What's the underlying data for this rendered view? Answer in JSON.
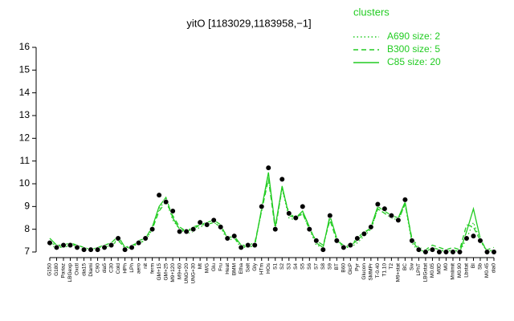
{
  "chart_data": {
    "type": "line",
    "title": "yitO [1183029,1183958,−1]",
    "legend_title": "clusters",
    "legend_position": "top-right",
    "categories": [
      "G150",
      "G180",
      "Pariaz",
      "LBGexp",
      "Oxctl",
      "dia15",
      "Diami",
      "C90",
      "dia5",
      "C30",
      "Cold",
      "HPh",
      "LPh",
      "aero",
      "nit",
      "ferm",
      "GM+15",
      "GM+25",
      "M9+120",
      "M9+60",
      "UNG+20",
      "UNG+30",
      "Mt",
      "M/G",
      "Glu",
      "Fru",
      "Heat",
      "BMM",
      "Etha",
      "Salt",
      "Gly",
      "HTm",
      "HOs",
      "S1",
      "S2",
      "S3",
      "S4",
      "S5",
      "S6",
      "S7",
      "S8",
      "S9",
      "BT",
      "B60",
      "GlcP",
      "Pyr",
      "Glucon",
      "SMMPr",
      "T-0.40",
      "T1.10",
      "T2",
      "M9+stat",
      "BC",
      "Sw",
      "LPhT",
      "LBGstat",
      "M0.05",
      "M0D",
      "M0",
      "Mnlimit",
      "M0.90",
      "Lbstat",
      "BI",
      "Sb",
      "M0.45",
      "dia0"
    ],
    "series": [
      {
        "name": "A690 size: 2",
        "color": "#22cc22",
        "dash": "dotted",
        "values": [
          7.3,
          7.2,
          7.2,
          7.3,
          7.2,
          7.1,
          7.1,
          7.1,
          7.2,
          7.3,
          7.6,
          7.1,
          7.2,
          7.4,
          7.5,
          8.0,
          8.9,
          9.3,
          8.4,
          8.0,
          7.8,
          7.9,
          8.1,
          8.2,
          8.3,
          8.1,
          7.5,
          7.6,
          7.2,
          7.2,
          7.3,
          8.8,
          10.4,
          8.0,
          9.8,
          8.5,
          8.4,
          8.7,
          8.0,
          7.3,
          7.2,
          8.5,
          7.5,
          7.2,
          7.2,
          7.4,
          7.7,
          8.0,
          8.9,
          8.7,
          8.5,
          8.4,
          9.1,
          7.4,
          7.0,
          7.0,
          7.1,
          7.0,
          7.0,
          7.0,
          7.0,
          7.6,
          8.3,
          7.5,
          7.0,
          7.0
        ]
      },
      {
        "name": "B300 size: 5",
        "color": "#22cc22",
        "dash": "dashed",
        "values": [
          7.4,
          7.3,
          7.2,
          7.3,
          7.3,
          7.2,
          7.1,
          7.2,
          7.2,
          7.3,
          7.5,
          7.2,
          7.3,
          7.4,
          7.5,
          8.0,
          8.8,
          9.2,
          8.6,
          8.1,
          7.9,
          8.1,
          8.2,
          8.2,
          8.3,
          8.1,
          7.7,
          7.6,
          7.3,
          7.3,
          7.4,
          8.8,
          10.2,
          8.0,
          9.8,
          8.7,
          8.5,
          8.7,
          8.0,
          7.5,
          7.3,
          8.4,
          7.5,
          7.3,
          7.3,
          7.6,
          7.9,
          8.0,
          8.9,
          8.7,
          8.5,
          8.4,
          9.1,
          7.6,
          7.2,
          7.1,
          7.3,
          7.2,
          7.1,
          7.2,
          7.1,
          8.2,
          8.1,
          7.5,
          7.1,
          7.2
        ]
      },
      {
        "name": "C85 size: 20",
        "color": "#22cc22",
        "dash": "solid",
        "values": [
          7.6,
          7.3,
          7.3,
          7.4,
          7.3,
          7.2,
          7.1,
          7.2,
          7.3,
          7.4,
          7.7,
          7.2,
          7.2,
          7.5,
          7.6,
          8.1,
          9.0,
          9.4,
          8.5,
          8.0,
          7.9,
          8.0,
          8.2,
          8.3,
          8.4,
          8.2,
          7.6,
          7.7,
          7.3,
          7.2,
          7.3,
          8.9,
          10.5,
          8.1,
          9.9,
          8.6,
          8.5,
          8.8,
          8.1,
          7.4,
          7.2,
          8.6,
          7.6,
          7.2,
          7.3,
          7.5,
          7.8,
          8.1,
          9.0,
          8.8,
          8.6,
          8.5,
          9.2,
          7.5,
          7.1,
          7.0,
          7.2,
          7.1,
          7.0,
          7.1,
          7.0,
          7.9,
          8.9,
          7.6,
          7.0,
          7.1
        ]
      }
    ],
    "points": [
      7.4,
      7.2,
      7.3,
      7.3,
      7.2,
      7.1,
      7.1,
      7.1,
      7.2,
      7.3,
      7.6,
      7.1,
      7.2,
      7.4,
      7.6,
      8.0,
      9.5,
      9.2,
      8.8,
      7.9,
      7.9,
      8.0,
      8.3,
      8.2,
      8.4,
      8.1,
      7.6,
      7.7,
      7.2,
      7.3,
      7.3,
      9.0,
      10.7,
      8.0,
      10.2,
      8.7,
      8.5,
      9.0,
      8.0,
      7.5,
      7.1,
      8.6,
      7.5,
      7.2,
      7.3,
      7.6,
      7.8,
      8.1,
      9.1,
      8.9,
      8.6,
      8.4,
      9.3,
      7.5,
      7.1,
      7.0,
      7.1,
      7.0,
      7.0,
      7.0,
      7.0,
      7.6,
      7.7,
      7.5,
      7.0,
      7.0
    ],
    "points_color": "#000000",
    "ylim": [
      7,
      16
    ],
    "yticks": [
      7,
      8,
      9,
      10,
      11,
      12,
      13,
      14,
      15,
      16
    ]
  }
}
